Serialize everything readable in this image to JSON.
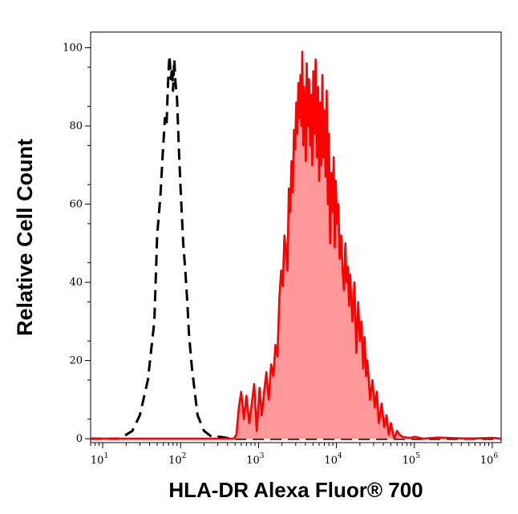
{
  "chart_data": {
    "type": "area",
    "xlabel": "HLA-DR Alexa Fluor® 700",
    "ylabel": "Relative Cell Count",
    "x_scale": "log",
    "xlim": [
      7,
      1300000
    ],
    "ylim": [
      -1,
      104
    ],
    "grid": false,
    "y_ticks": [
      0,
      20,
      40,
      60,
      80,
      100
    ],
    "x_ticks": [
      {
        "base": "10",
        "exp": "1",
        "value": 10
      },
      {
        "base": "10",
        "exp": "2",
        "value": 100
      },
      {
        "base": "10",
        "exp": "3",
        "value": 1000
      },
      {
        "base": "10",
        "exp": "4",
        "value": 10000
      },
      {
        "base": "10",
        "exp": "5",
        "value": 100000
      },
      {
        "base": "10",
        "exp": "6",
        "value": 1000000
      }
    ],
    "colors": {
      "stained_line": "#ff0000",
      "stained_fill": "#ff9999",
      "control_line": "#000000"
    },
    "series": [
      {
        "style": "dashed-black",
        "x": [
          7,
          16,
          20,
          24,
          30,
          38,
          46,
          50,
          55,
          59,
          63,
          66,
          68,
          70,
          72,
          75,
          78,
          80,
          83,
          86,
          90,
          95,
          100,
          108,
          115,
          122,
          128,
          140,
          165,
          200,
          250,
          320,
          450,
          700,
          1500,
          5000,
          10000,
          50000,
          1300000
        ],
        "y": [
          0,
          0,
          1,
          2,
          6,
          15,
          30,
          52,
          62,
          73,
          82,
          80,
          88,
          94,
          98,
          92,
          95,
          89,
          97,
          91,
          87,
          74,
          64,
          50,
          43,
          35,
          27,
          18,
          6,
          2,
          0.5,
          0.5,
          0,
          0,
          0,
          0,
          0,
          0,
          0
        ]
      },
      {
        "style": "red-filled",
        "x": [
          7,
          300,
          480,
          520,
          560,
          600,
          650,
          700,
          760,
          820,
          880,
          950,
          1030,
          1100,
          1180,
          1260,
          1350,
          1450,
          1550,
          1650,
          1750,
          1850,
          1950,
          2050,
          2150,
          2250,
          2350,
          2450,
          2550,
          2650,
          2750,
          2850,
          2950,
          3050,
          3150,
          3250,
          3350,
          3450,
          3550,
          3650,
          3750,
          3850,
          3950,
          4050,
          4150,
          4300,
          4450,
          4600,
          4750,
          4900,
          5050,
          5200,
          5400,
          5600,
          5800,
          6000,
          6200,
          6400,
          6600,
          6800,
          7000,
          7250,
          7500,
          7750,
          8000,
          8300,
          8600,
          8900,
          9200,
          9500,
          9800,
          10200,
          10600,
          11000,
          11500,
          12000,
          12500,
          13000,
          13500,
          14000,
          14500,
          15000,
          16000,
          17000,
          18000,
          19000,
          20000,
          21000,
          22000,
          23000,
          24000,
          25000,
          27000,
          29000,
          31000,
          33000,
          35000,
          38000,
          41000,
          44000,
          47000,
          50000,
          55000,
          60000,
          65000,
          70000,
          80000,
          90000,
          100000,
          130000,
          200000,
          500000,
          1000000,
          1300000
        ],
        "y": [
          0,
          0,
          0,
          1,
          8,
          12,
          5,
          11,
          4,
          9,
          14,
          2,
          13,
          6,
          12,
          17,
          10,
          19,
          16,
          24,
          21,
          36,
          43,
          39,
          52,
          48,
          43,
          64,
          58,
          71,
          63,
          79,
          74,
          86,
          78,
          91,
          82,
          93,
          80,
          99,
          75,
          90,
          84,
          71,
          96,
          80,
          92,
          75,
          88,
          70,
          94,
          78,
          97,
          72,
          90,
          66,
          86,
          70,
          93,
          72,
          84,
          67,
          89,
          60,
          78,
          50,
          68,
          58,
          72,
          49,
          66,
          55,
          60,
          46,
          52,
          43,
          38,
          50,
          40,
          44,
          34,
          42,
          30,
          40,
          22,
          35,
          25,
          30,
          18,
          26,
          16,
          20,
          10,
          15,
          8,
          12,
          4,
          9,
          3,
          6,
          1,
          4,
          0,
          2,
          1,
          0.5,
          0.3,
          0.2,
          0.5,
          0,
          0.3,
          0,
          0.2,
          0
        ]
      }
    ]
  }
}
